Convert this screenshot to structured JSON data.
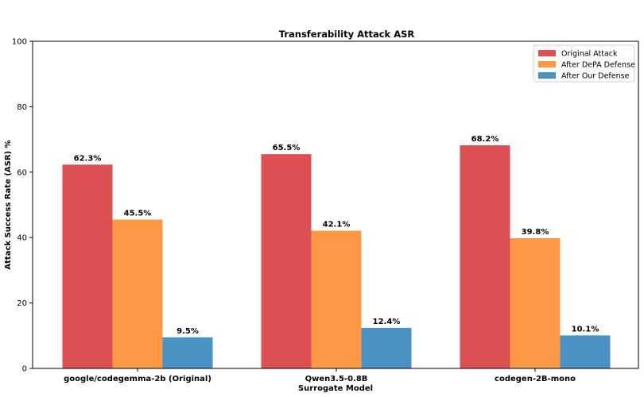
{
  "chart_data": {
    "type": "bar",
    "title": "Transferability Attack ASR",
    "xlabel": "Surrogate Model",
    "ylabel": "Attack Success Rate (ASR) %",
    "ylim": [
      0,
      100
    ],
    "yticks": [
      0,
      20,
      40,
      60,
      80,
      100
    ],
    "grid": false,
    "legend_position": "top-right",
    "categories": [
      "google/codegemma-2b (Original)",
      "Qwen3.5-0.8B",
      "codegen-2B-mono"
    ],
    "series": [
      {
        "name": "Original Attack",
        "color": "#dc5052",
        "values": [
          62.3,
          65.5,
          68.2
        ],
        "labels": [
          "62.3%",
          "65.5%",
          "68.2%"
        ]
      },
      {
        "name": "After DePA Defense",
        "color": "#fd9844",
        "values": [
          45.5,
          42.1,
          39.8
        ],
        "labels": [
          "45.5%",
          "42.1%",
          "39.8%"
        ]
      },
      {
        "name": "After Our Defense",
        "color": "#4a92c4",
        "values": [
          9.5,
          12.4,
          10.1
        ],
        "labels": [
          "9.5%",
          "12.4%",
          "10.1%"
        ]
      }
    ]
  }
}
